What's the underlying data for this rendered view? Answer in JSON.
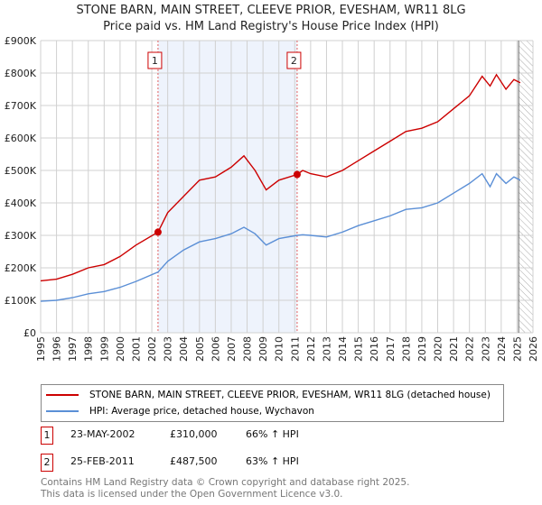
{
  "chart_data": {
    "type": "line",
    "title": "STONE BARN, MAIN STREET, CLEEVE PRIOR, EVESHAM, WR11 8LG",
    "subtitle": "Price paid vs. HM Land Registry's House Price Index (HPI)",
    "xlim": [
      1995,
      2026
    ],
    "ylim": [
      0,
      900000
    ],
    "x_ticks": [
      "1995",
      "1996",
      "1997",
      "1998",
      "1999",
      "2000",
      "2001",
      "2002",
      "2003",
      "2004",
      "2005",
      "2006",
      "2007",
      "2008",
      "2009",
      "2010",
      "2011",
      "2012",
      "2013",
      "2014",
      "2015",
      "2016",
      "2017",
      "2018",
      "2019",
      "2020",
      "2021",
      "2022",
      "2023",
      "2024",
      "2025",
      "2026"
    ],
    "y_ticks": [
      {
        "v": 0,
        "label": "£0"
      },
      {
        "v": 100000,
        "label": "£100K"
      },
      {
        "v": 200000,
        "label": "£200K"
      },
      {
        "v": 300000,
        "label": "£300K"
      },
      {
        "v": 400000,
        "label": "£400K"
      },
      {
        "v": 500000,
        "label": "£500K"
      },
      {
        "v": 600000,
        "label": "£600K"
      },
      {
        "v": 700000,
        "label": "£700K"
      },
      {
        "v": 800000,
        "label": "£800K"
      },
      {
        "v": 900000,
        "label": "£900K"
      }
    ],
    "grid": true,
    "x": [
      1995,
      1996,
      1997,
      1998,
      1999,
      2000,
      2001,
      2002.39,
      2003,
      2004,
      2005,
      2006,
      2007,
      2007.8,
      2008.5,
      2009.2,
      2010,
      2011.15,
      2011.5,
      2012,
      2013,
      2014,
      2015,
      2016,
      2017,
      2018,
      2019,
      2020,
      2021,
      2022,
      2022.8,
      2023.3,
      2023.7,
      2024.3,
      2024.8,
      2025.2
    ],
    "series": [
      {
        "name": "STONE BARN, MAIN STREET, CLEEVE PRIOR, EVESHAM, WR11 8LG (detached house)",
        "color": "#cc0000",
        "values": [
          160000,
          165000,
          180000,
          200000,
          210000,
          235000,
          270000,
          310000,
          370000,
          420000,
          470000,
          480000,
          510000,
          545000,
          500000,
          440000,
          470000,
          487500,
          500000,
          490000,
          480000,
          500000,
          530000,
          560000,
          590000,
          620000,
          630000,
          650000,
          690000,
          730000,
          790000,
          760000,
          795000,
          750000,
          780000,
          770000
        ]
      },
      {
        "name": "HPI: Average price, detached house, Wychavon",
        "color": "#5b8fd6",
        "values": [
          97000,
          100000,
          108000,
          120000,
          127000,
          140000,
          158000,
          187000,
          220000,
          255000,
          280000,
          290000,
          305000,
          325000,
          305000,
          270000,
          290000,
          300000,
          302000,
          300000,
          295000,
          310000,
          330000,
          345000,
          360000,
          380000,
          385000,
          400000,
          430000,
          460000,
          490000,
          450000,
          490000,
          460000,
          480000,
          470000
        ]
      }
    ],
    "sales": [
      {
        "id": "1",
        "x": 2002.39,
        "date": "23-MAY-2002",
        "price": "£310,000",
        "value": 310000,
        "hpi": "66% ↑ HPI"
      },
      {
        "id": "2",
        "x": 2011.15,
        "date": "25-FEB-2011",
        "price": "£487,500",
        "value": 487500,
        "hpi": "63% ↑ HPI"
      }
    ],
    "forecast_start": 2025.1,
    "legend_placement": "below"
  },
  "footer": {
    "line1": "Contains HM Land Registry data © Crown copyright and database right 2025.",
    "line2": "This data is licensed under the Open Government Licence v3.0."
  }
}
